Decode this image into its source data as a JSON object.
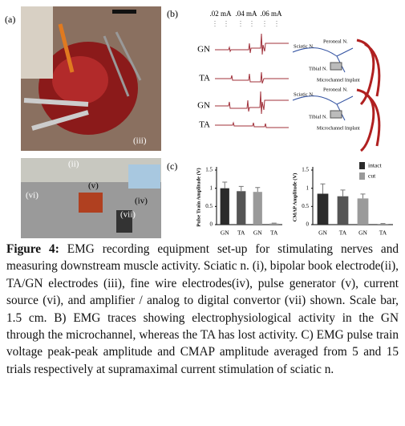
{
  "panels": {
    "a": {
      "label": "(a)",
      "photo_labels": [
        "(iii)",
        "(ii)",
        "(iv)",
        "(v)",
        "(vi)",
        "(vii)"
      ]
    },
    "b": {
      "label": "(b)",
      "currents": [
        ".02 mA",
        ".04 mA",
        ".06 mA"
      ],
      "traces": [
        "GN",
        "TA",
        "GN",
        "TA"
      ],
      "diagram": {
        "sciatic": "Sciatic N.",
        "peroneal": "Peroneal N.",
        "tibial": "Tibial N.",
        "implant": "Microchannel Implant"
      }
    },
    "c": {
      "label": "(c)"
    }
  },
  "chart_data": [
    {
      "type": "bar",
      "ylabel": "Pulse Train Amplitude (V)",
      "categories": [
        "GN",
        "TA",
        "GN",
        "TA"
      ],
      "values": [
        1.0,
        0.92,
        0.9,
        0.03
      ],
      "errors": [
        0.17,
        0.13,
        0.12,
        0.01
      ],
      "colors": [
        "#2b2b2b",
        "#555555",
        "#9a9a9a",
        "#9a9a9a"
      ],
      "ylim": [
        0,
        1.5
      ],
      "yticks": [
        0,
        0.5,
        1,
        1.5
      ]
    },
    {
      "type": "bar",
      "ylabel": "CMAP Amplitude (V)",
      "categories": [
        "GN",
        "TA",
        "GN",
        "TA"
      ],
      "values": [
        0.85,
        0.78,
        0.72,
        0.02
      ],
      "errors": [
        0.27,
        0.17,
        0.12,
        0.01
      ],
      "colors": [
        "#2b2b2b",
        "#555555",
        "#9a9a9a",
        "#9a9a9a"
      ],
      "ylim": [
        0,
        1.5
      ],
      "yticks": [
        0,
        0.5,
        1,
        1.5
      ],
      "legend": [
        {
          "name": "intact",
          "color": "#2b2b2b"
        },
        {
          "name": "cut",
          "color": "#9a9a9a"
        }
      ]
    }
  ],
  "caption": {
    "label": "Figure 4:",
    "text": "EMG recording equipment set-up for stimulating nerves and measuring downstream muscle activity. Sciatic n. (i), bipolar book electrode(ii), TA/GN electrodes (iii), fine wire electrodes(iv), pulse generator (v), current source (vi), and amplifier / analog to digital convertor (vii) shown. Scale bar, 1.5 cm. B) EMG traces showing electrophysiological activity in the GN through the microchannel, whereas the TA has lost activity. C) EMG pulse train voltage peak-peak amplitude and CMAP amplitude averaged from 5 and 15 trials respectively at supramaximal current stimulation of sciatic n."
  }
}
